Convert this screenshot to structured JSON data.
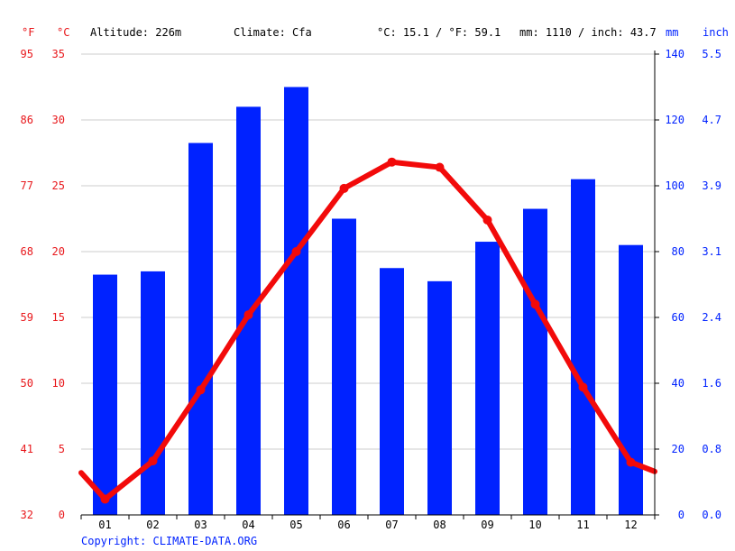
{
  "header": {
    "unit_f": "°F",
    "unit_c": "°C",
    "altitude": "Altitude: 226m",
    "climate": "Climate: Cfa",
    "temp_avg": "°C: 15.1 / °F: 59.1",
    "precip_total": "mm: 1110 / inch: 43.7",
    "unit_mm": "mm",
    "unit_inch": "inch"
  },
  "footer": {
    "copyright": "Copyright: CLIMATE-DATA.ORG"
  },
  "colors": {
    "temperature": "#f20a0a",
    "precipitation": "#0022ff",
    "grid": "#cccccc",
    "axis_red": "#e8171b",
    "axis_blue": "#0022ff"
  },
  "chart_data": {
    "type": "bar",
    "categories": [
      "01",
      "02",
      "03",
      "04",
      "05",
      "06",
      "07",
      "08",
      "09",
      "10",
      "11",
      "12"
    ],
    "series": [
      {
        "type": "bar",
        "axis": "right",
        "unit": "mm",
        "values": [
          73,
          74,
          113,
          124,
          130,
          90,
          75,
          71,
          83,
          93,
          102,
          82
        ]
      },
      {
        "type": "line",
        "axis": "left",
        "unit": "°C",
        "values": [
          1.2,
          4.1,
          9.5,
          15.2,
          20.0,
          24.8,
          26.8,
          26.4,
          22.4,
          16.0,
          9.7,
          4.0
        ]
      }
    ],
    "edge_values": {
      "temp_left": 3.2,
      "temp_right": 3.3
    },
    "y_left_c": {
      "ticks": [
        "0",
        "5",
        "10",
        "15",
        "20",
        "25",
        "30",
        "35"
      ],
      "ylim": [
        0,
        35
      ]
    },
    "y_left_f": {
      "ticks": [
        "32",
        "41",
        "50",
        "59",
        "68",
        "77",
        "86",
        "95"
      ]
    },
    "y_right_mm": {
      "ticks": [
        "0",
        "20",
        "40",
        "60",
        "80",
        "100",
        "120",
        "140"
      ],
      "ylim": [
        0,
        140
      ]
    },
    "y_right_inch": {
      "ticks": [
        "0.0",
        "0.8",
        "1.6",
        "2.4",
        "3.1",
        "3.9",
        "4.7",
        "5.5"
      ]
    },
    "grid": true
  }
}
